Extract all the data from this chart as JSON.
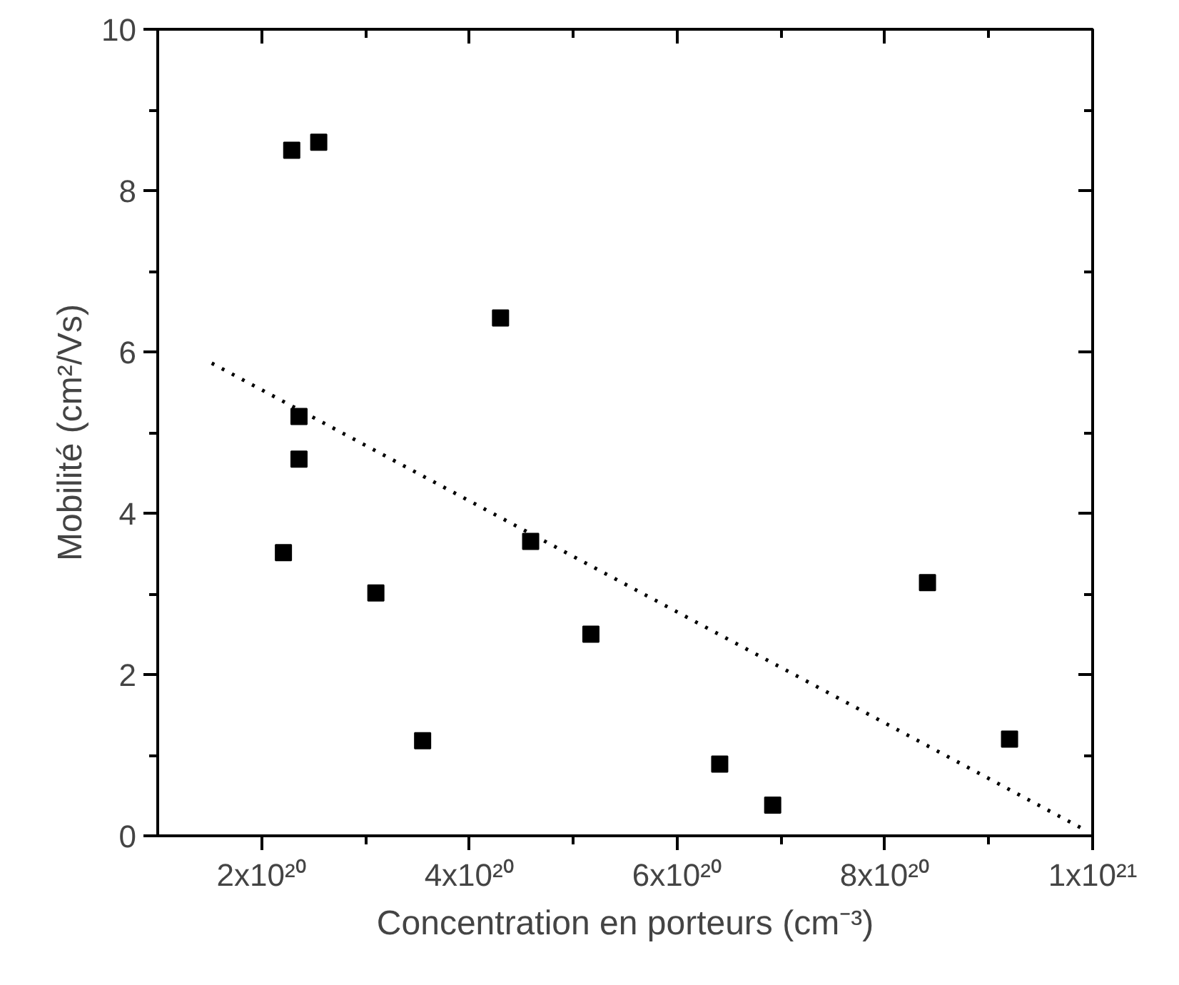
{
  "chart_data": {
    "type": "scatter",
    "xlabel": "Concentration en porteurs (cm⁻³)",
    "ylabel": "Mobilité (cm²/Vs)",
    "xlim": [
      1e+20,
      1e+21
    ],
    "ylim": [
      0,
      10
    ],
    "xticks": [
      {
        "value": 2e+20,
        "label": "2x10²⁰"
      },
      {
        "value": 3e+20,
        "label": null
      },
      {
        "value": 4e+20,
        "label": "4x10²⁰"
      },
      {
        "value": 5e+20,
        "label": null
      },
      {
        "value": 6e+20,
        "label": "6x10²⁰"
      },
      {
        "value": 7e+20,
        "label": null
      },
      {
        "value": 8e+20,
        "label": "8x10²⁰"
      },
      {
        "value": 9e+20,
        "label": null
      },
      {
        "value": 1e+21,
        "label": "1x10²¹"
      }
    ],
    "yticks": [
      0,
      {
        "value": 1,
        "label": null
      },
      2,
      {
        "value": 3,
        "label": null
      },
      4,
      {
        "value": 5,
        "label": null
      },
      6,
      {
        "value": 7,
        "label": null
      },
      8,
      {
        "value": 9,
        "label": null
      },
      10
    ],
    "grid": false,
    "marker": "square",
    "series": [
      {
        "color": "#000000",
        "x": [
          2.29e+20,
          2.55e+20,
          2.36e+20,
          2.36e+20,
          2.21e+20,
          3.1e+20,
          3.55e+20,
          4.3e+20,
          4.59e+20,
          5.17e+20,
          6.41e+20,
          6.92e+20,
          8.41e+20,
          9.2e+20
        ],
        "values": [
          8.5,
          8.6,
          5.2,
          4.67,
          3.51,
          3.01,
          1.18,
          6.42,
          3.65,
          2.5,
          0.89,
          0.38,
          3.14,
          1.2
        ]
      },
      {
        "type": "line",
        "color": "#000000",
        "line_style": "dotted",
        "marker": "none",
        "x": [
          1.52e+20,
          9.93e+20
        ],
        "values": [
          5.86,
          0.07
        ]
      }
    ]
  }
}
